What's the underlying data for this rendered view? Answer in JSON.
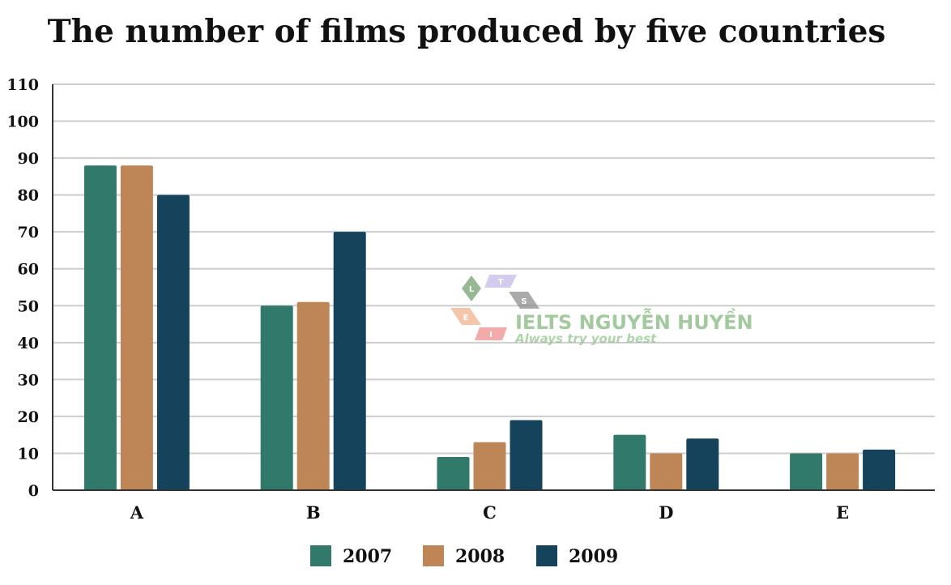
{
  "chart_data": {
    "type": "bar",
    "title": "The number of films produced by five countries",
    "categories": [
      "A",
      "B",
      "C",
      "D",
      "E"
    ],
    "series": [
      {
        "name": "2007",
        "color": "#317A6B",
        "values": [
          88,
          50,
          9,
          15,
          10
        ]
      },
      {
        "name": "2008",
        "color": "#BE8557",
        "values": [
          88,
          51,
          13,
          10,
          10
        ]
      },
      {
        "name": "2009",
        "color": "#16435C",
        "values": [
          80,
          70,
          19,
          14,
          11
        ]
      }
    ],
    "ylim": [
      0,
      110
    ],
    "yticks": [
      0,
      10,
      20,
      30,
      40,
      50,
      60,
      70,
      80,
      90,
      100,
      110
    ],
    "xlabel": "",
    "ylabel": "",
    "grid": true,
    "legend": "bottom"
  },
  "watermark": {
    "title": "IELTS NGUYỄN HUYỀN",
    "subtitle": "Always try your best",
    "letters": [
      "L",
      "T",
      "S",
      "E",
      "I"
    ]
  }
}
